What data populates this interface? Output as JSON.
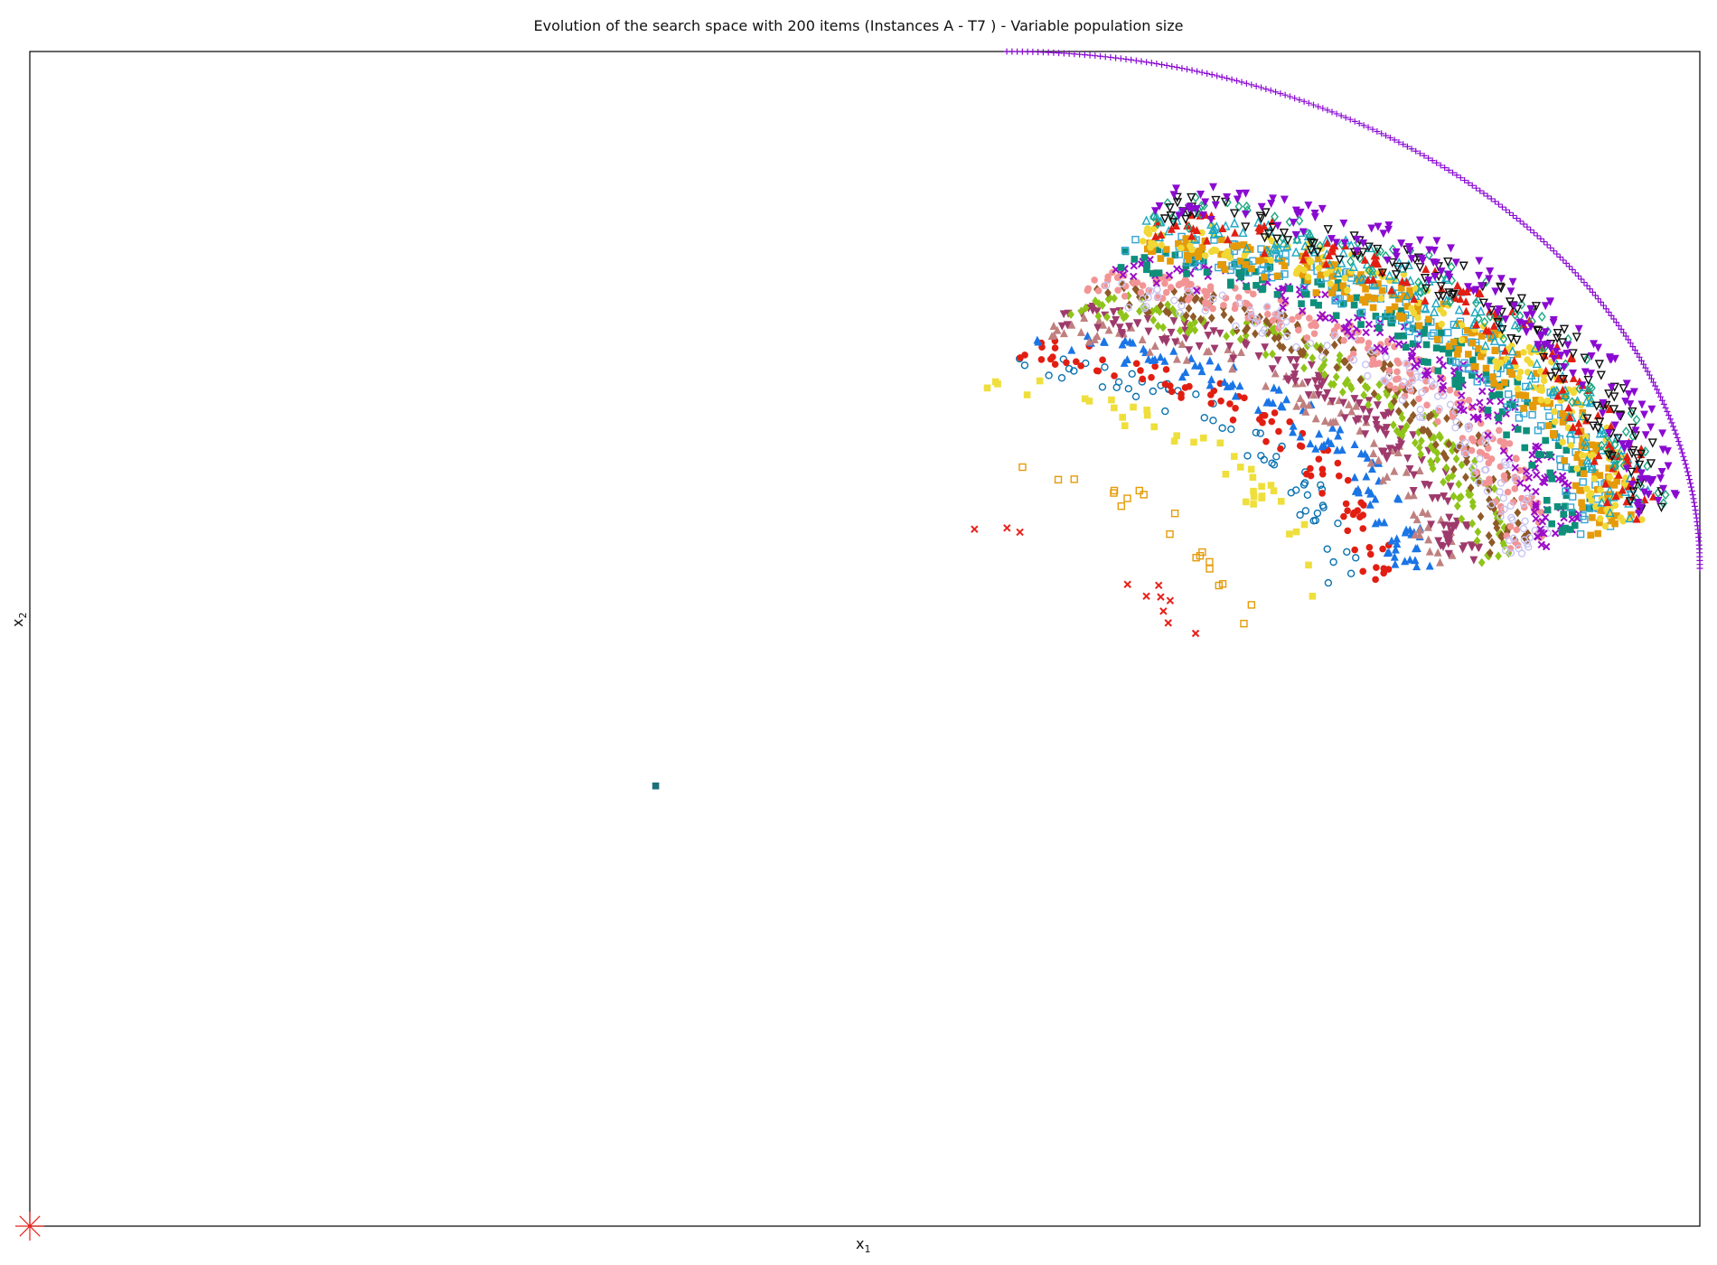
{
  "chart_data": {
    "type": "scatter",
    "title": "Evolution of the search space with 200 items (Instances A - T7 ) - Variable population size",
    "xlabel_main": "x",
    "xlabel_sub": "1",
    "ylabel_main": "x",
    "ylabel_sub": "2",
    "grid": false,
    "legend": "none",
    "xlim": [
      0,
      1
    ],
    "ylim": [
      0,
      1
    ],
    "reference_point": {
      "x": 0,
      "y": 0,
      "marker": "x",
      "color": "#e8211a"
    },
    "series": [
      {
        "marker": "square",
        "filled": true,
        "color": "#1f6f7a",
        "arc": [
          0.53,
          0.53
        ],
        "n": 1
      },
      {
        "marker": "x",
        "filled": true,
        "color": "#e8211a",
        "arc": [
          0.7,
          0.6
        ],
        "n": 11
      },
      {
        "marker": "square",
        "filled": false,
        "color": "#e59b09",
        "arc": [
          0.73,
          0.66
        ],
        "n": 20
      },
      {
        "marker": "square",
        "filled": true,
        "color": "#eedf3c",
        "arc": [
          0.77,
          0.72
        ],
        "n": 40
      },
      {
        "marker": "circle",
        "filled": false,
        "color": "#0a72b0",
        "arc": [
          0.79,
          0.74
        ],
        "n": 60
      },
      {
        "marker": "circle",
        "filled": true,
        "color": "#e21e12",
        "arc": [
          0.81,
          0.75
        ],
        "n": 90
      },
      {
        "marker": "triangle-up",
        "filled": true,
        "color": "#1a75e6",
        "arc": [
          0.83,
          0.76
        ],
        "n": 110
      },
      {
        "marker": "triangle-up",
        "filled": true,
        "color": "#c08080",
        "arc": [
          0.85,
          0.77
        ],
        "n": 90
      },
      {
        "marker": "triangle-down",
        "filled": true,
        "color": "#9e3a6c",
        "arc": [
          0.86,
          0.78
        ],
        "n": 150
      },
      {
        "marker": "diamond",
        "filled": true,
        "color": "#8fc419",
        "arc": [
          0.88,
          0.79
        ],
        "n": 170
      },
      {
        "marker": "diamond",
        "filled": true,
        "color": "#8f5a28",
        "arc": [
          0.89,
          0.8
        ],
        "n": 150
      },
      {
        "marker": "circle",
        "filled": true,
        "color": "#f29495",
        "arc": [
          0.9,
          0.81
        ],
        "n": 220
      },
      {
        "marker": "circle",
        "filled": false,
        "color": "#c9c5f2",
        "arc": [
          0.9,
          0.8
        ],
        "n": 120
      },
      {
        "marker": "x",
        "filled": true,
        "color": "#9a0cc9",
        "arc": [
          0.92,
          0.82
        ],
        "n": 170
      },
      {
        "marker": "square",
        "filled": true,
        "color": "#0e8f7a",
        "arc": [
          0.93,
          0.83
        ],
        "n": 150
      },
      {
        "marker": "square",
        "filled": false,
        "color": "#35a6d4",
        "arc": [
          0.94,
          0.84
        ],
        "n": 170
      },
      {
        "marker": "square",
        "filled": true,
        "color": "#e59b09",
        "arc": [
          0.95,
          0.84
        ],
        "n": 200
      },
      {
        "marker": "circle",
        "filled": true,
        "color": "#f2d836",
        "arc": [
          0.955,
          0.85
        ],
        "n": 170
      },
      {
        "marker": "triangle-up",
        "filled": false,
        "color": "#1aa8c4",
        "arc": [
          0.96,
          0.86
        ],
        "n": 150
      },
      {
        "marker": "triangle-up",
        "filled": true,
        "color": "#e21e12",
        "arc": [
          0.965,
          0.86
        ],
        "n": 130
      },
      {
        "marker": "diamond",
        "filled": false,
        "color": "#1aa880",
        "arc": [
          0.97,
          0.87
        ],
        "n": 90
      },
      {
        "marker": "triangle-down",
        "filled": false,
        "color": "#111111",
        "arc": [
          0.975,
          0.87
        ],
        "n": 130
      },
      {
        "marker": "triangle-down",
        "filled": true,
        "color": "#8a0ad1",
        "arc": [
          0.98,
          0.88
        ],
        "n": 170
      },
      {
        "marker": "plus",
        "filled": true,
        "color": "#8a0ad1",
        "arc": [
          1.0,
          1.0
        ],
        "n": 210
      }
    ]
  }
}
